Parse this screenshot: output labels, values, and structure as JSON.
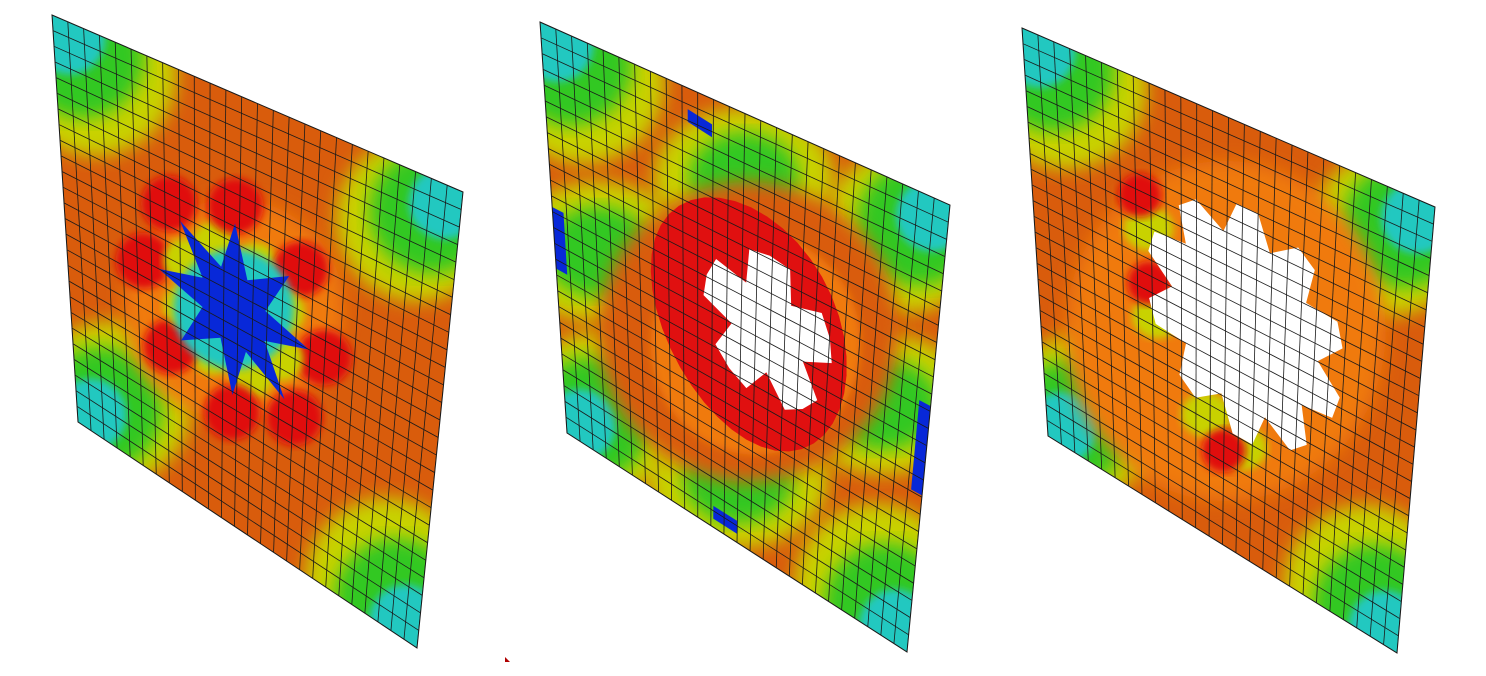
{
  "colors": {
    "base": "#d95c0c",
    "red": "#e01010",
    "orange": "#f07a10",
    "yellow": "#c8d200",
    "green": "#30c820",
    "cyan": "#20c8c0",
    "blue": "#0828d8",
    "mesh": "#1a1a1a",
    "hole": "#ffffff"
  },
  "mesh_divisions": 26
}
